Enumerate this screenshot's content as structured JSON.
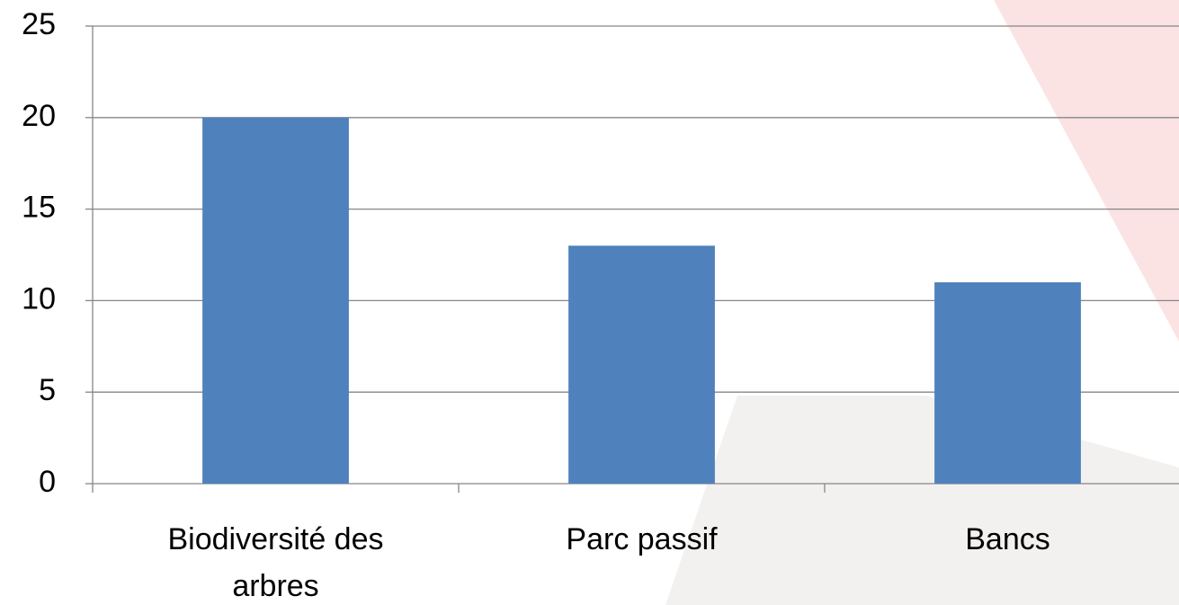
{
  "chart_data": {
    "type": "bar",
    "categories": [
      "Biodiversité des arbres",
      "Parc passif",
      "Bancs"
    ],
    "values": [
      20,
      13,
      11
    ],
    "color": "#4f81bd",
    "ylim": [
      0,
      25
    ],
    "yticks": [
      0,
      5,
      10,
      15,
      20,
      25
    ],
    "grid": true
  }
}
